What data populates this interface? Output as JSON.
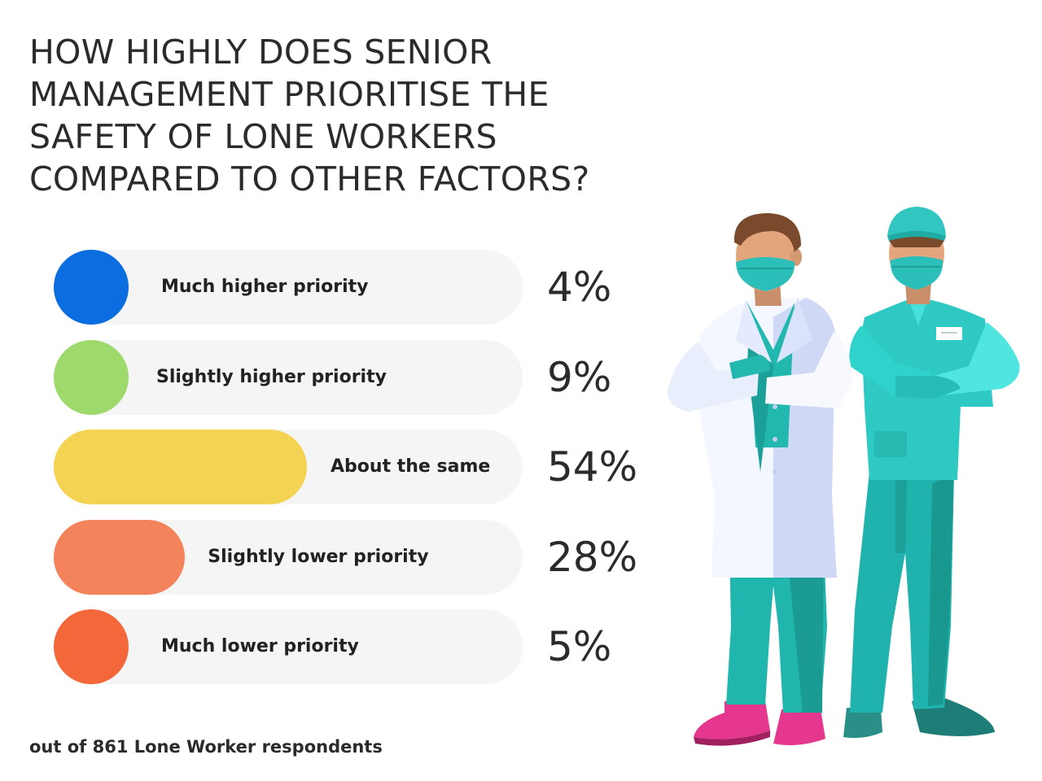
{
  "chart_data": {
    "type": "bar",
    "orientation": "horizontal",
    "title_lines": [
      "HOW HIGHLY DOES SENIOR",
      "MANAGEMENT PRIORITISE THE",
      "SAFETY OF LONE WORKERS",
      "COMPARED TO OTHER FACTORS?"
    ],
    "categories": [
      "Much higher priority",
      "Slightly higher priority",
      "About the same",
      "Slightly lower priority",
      "Much lower priority"
    ],
    "values": [
      4,
      9,
      54,
      28,
      5
    ],
    "value_labels": [
      "4%",
      "9%",
      "54%",
      "28%",
      "5%"
    ],
    "unit": "%",
    "colors": [
      "#0a6ee0",
      "#9ed96b",
      "#f3d351",
      "#f3835a",
      "#f4673a"
    ],
    "track_color": "#f5f5f5",
    "xlim": [
      0,
      100
    ],
    "grid": false,
    "footnote": "out of 861 Lone Worker respondents"
  },
  "illustration": {
    "figures": [
      "doctor-in-white-coat",
      "surgeon-in-teal-scrubs"
    ]
  }
}
